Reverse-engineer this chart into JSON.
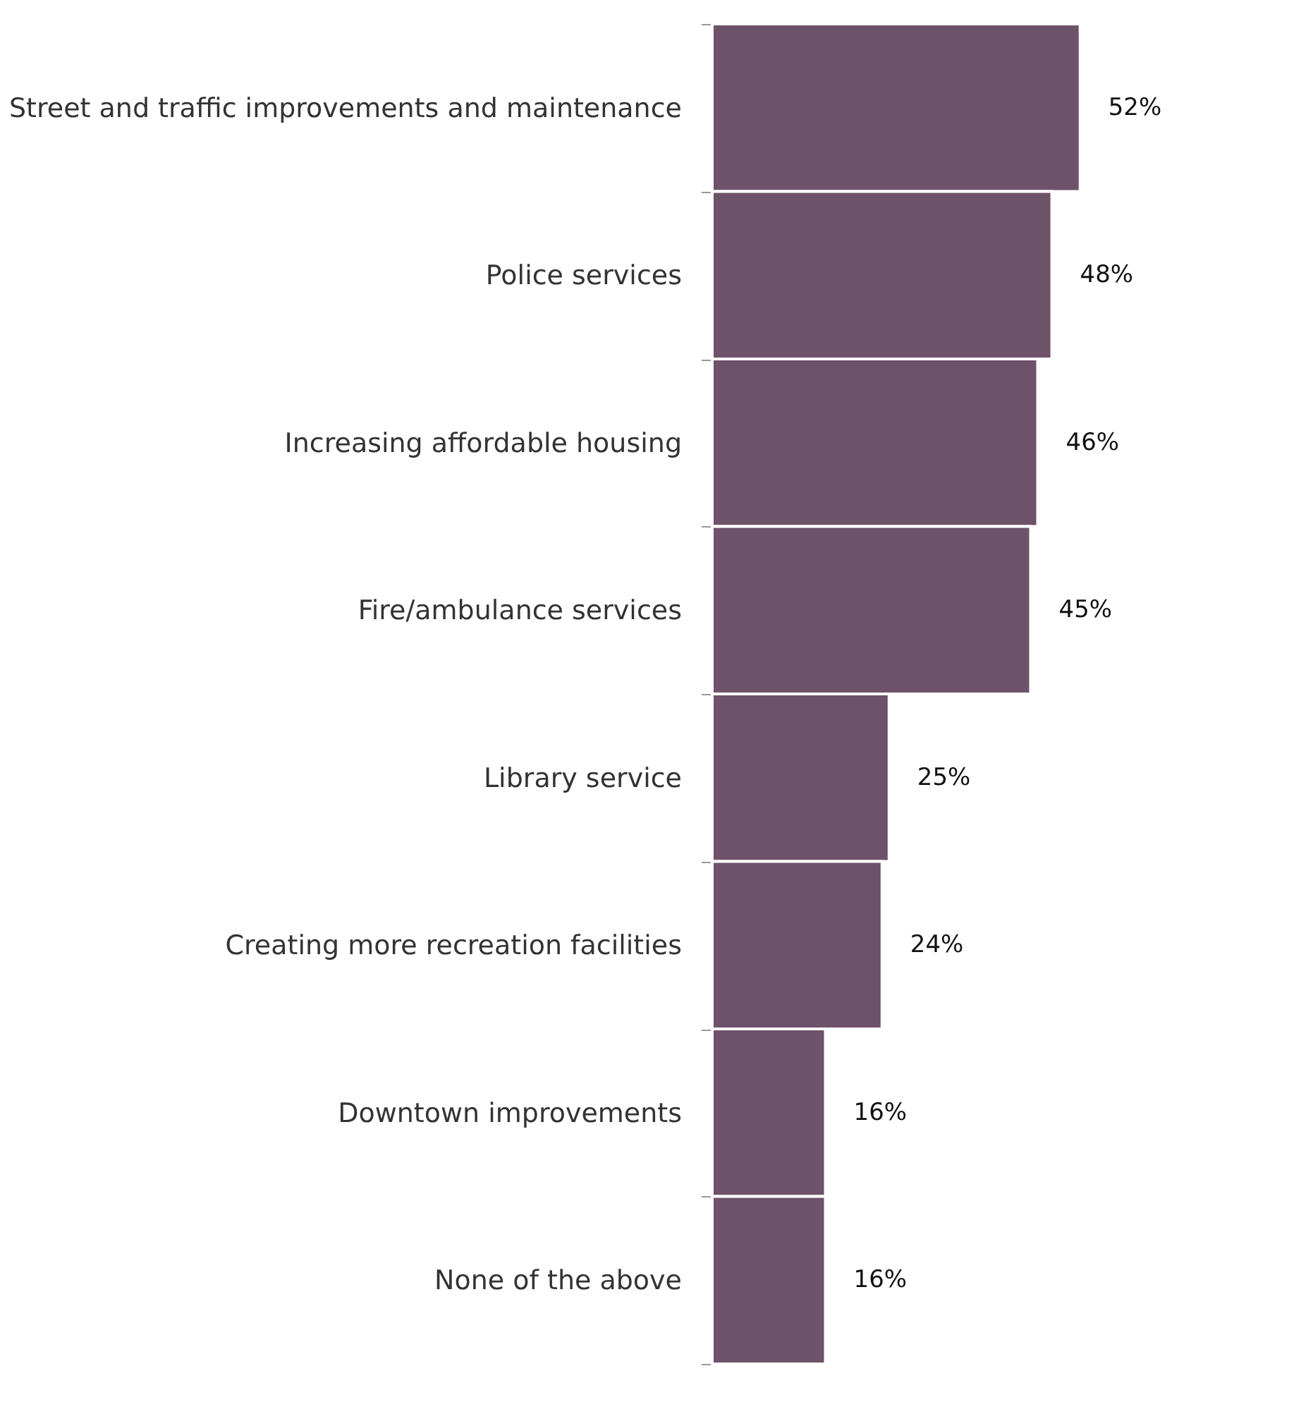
{
  "chart_data": {
    "type": "bar",
    "orientation": "horizontal",
    "categories": [
      "Street and traffic improvements and maintenance",
      "Police services",
      "Increasing affordable housing",
      "Fire/ambulance services",
      "Library service",
      "Creating more recreation facilities",
      "Downtown improvements",
      "None of the above"
    ],
    "values": [
      52,
      48,
      46,
      45,
      25,
      24,
      16,
      16
    ],
    "value_labels": [
      "52%",
      "48%",
      "46%",
      "45%",
      "25%",
      "24%",
      "16%",
      "16%"
    ],
    "color": "#6e5269"
  }
}
